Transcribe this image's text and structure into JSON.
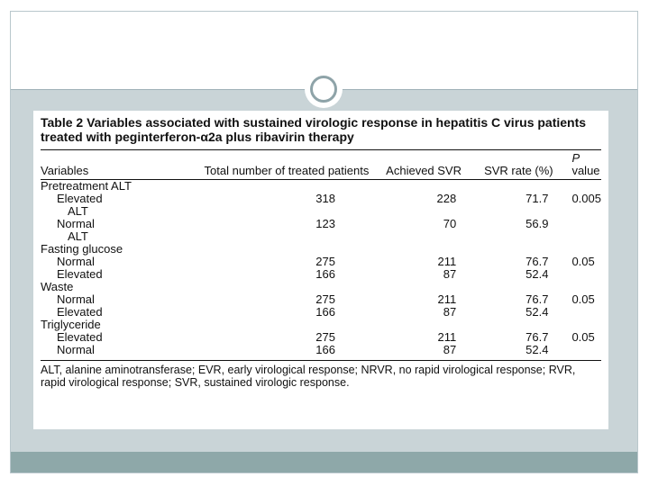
{
  "table": {
    "caption": "Table 2   Variables associated with sustained virologic response in hepatitis C virus patients treated with peginterferon-α2a plus ribavirin therapy",
    "headers": {
      "variables": "Variables",
      "total": "Total number of treated patients",
      "achieved": "Achieved SVR",
      "svr_rate": "SVR rate (%)",
      "p_letter": "P",
      "p_rest": " value"
    },
    "groups": [
      {
        "label": "Pretreatment ALT",
        "rows": [
          {
            "label": "Elevated",
            "label2": "ALT",
            "total": "318",
            "achieved": "228",
            "rate": "71.7",
            "p": "0.005"
          },
          {
            "label": "Normal",
            "label2": "ALT",
            "total": "123",
            "achieved": "70",
            "rate": "56.9",
            "p": ""
          }
        ]
      },
      {
        "label": "Fasting glucose",
        "rows": [
          {
            "label": "Normal",
            "total": "275",
            "achieved": "211",
            "rate": "76.7",
            "p": "0.05"
          },
          {
            "label": "Elevated",
            "total": "166",
            "achieved": "87",
            "rate": "52.4",
            "p": ""
          }
        ]
      },
      {
        "label": "Waste",
        "rows": [
          {
            "label": "Normal",
            "total": "275",
            "achieved": "211",
            "rate": "76.7",
            "p": "0.05"
          },
          {
            "label": "Elevated",
            "total": "166",
            "achieved": "87",
            "rate": "52.4",
            "p": ""
          }
        ]
      },
      {
        "label": "Triglyceride",
        "rows": [
          {
            "label": "Elevated",
            "total": "275",
            "achieved": "211",
            "rate": "76.7",
            "p": "0.05"
          },
          {
            "label": "Normal",
            "total": "166",
            "achieved": "87",
            "rate": "52.4",
            "p": ""
          }
        ]
      }
    ],
    "footnote": "ALT, alanine aminotransferase; EVR, early virological response; NRVR, no rapid virological response; RVR, rapid virological response; SVR, sustained virologic response."
  },
  "colors": {
    "content_band": "#c9d4d7",
    "footer_band": "#8ea8a9",
    "ring": "#8ea3a8"
  }
}
